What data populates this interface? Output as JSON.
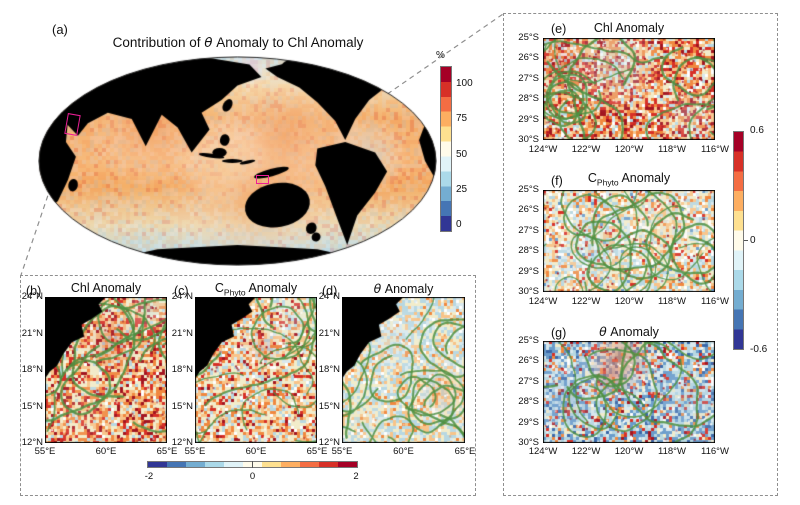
{
  "panel_a": {
    "label": "(a)",
    "title_pre": "Contribution of ",
    "title_theta": "θ",
    "title_post": " Anomaly to Chl Anomaly",
    "colorbar": {
      "unit_label": "%",
      "tick_labels": [
        "100",
        "75",
        "50",
        "25",
        "0"
      ]
    }
  },
  "bottom_group": {
    "panel_b": {
      "label": "(b)",
      "title": "Chl Anomaly"
    },
    "panel_c": {
      "label": "(c)",
      "title_c": "C",
      "title_sub": "Phyto",
      "title_rest": " Anomaly"
    },
    "panel_d": {
      "label": "(d)",
      "title_theta": "θ",
      "title_rest": " Anomaly"
    },
    "yticks": [
      "24°N",
      "21°N",
      "18°N",
      "15°N",
      "12°N"
    ],
    "xticks": [
      "55°E",
      "60°E",
      "65°E"
    ],
    "colorbar": {
      "tick_labels": [
        "-2",
        "0",
        "2"
      ]
    }
  },
  "right_group": {
    "panel_e": {
      "label": "(e)",
      "title": "Chl Anomaly"
    },
    "panel_f": {
      "label": "(f)",
      "title_c": "C",
      "title_sub": "Phyto",
      "title_rest": " Anomaly"
    },
    "panel_g": {
      "label": "(g)",
      "title_theta": "θ",
      "title_rest": " Anomaly"
    },
    "yticks": [
      "25°S",
      "26°S",
      "27°S",
      "28°S",
      "29°S",
      "30°S"
    ],
    "xticks": [
      "124°W",
      "122°W",
      "120°W",
      "118°W",
      "116°W"
    ],
    "colorbar": {
      "tick_labels": [
        "0.6",
        "0",
        "-0.6"
      ]
    }
  },
  "colors": {
    "colormap_neg_to_pos": [
      "#313695",
      "#4575b4",
      "#74add1",
      "#abd9e9",
      "#e0f3f8",
      "#fffbea",
      "#fee090",
      "#fdae61",
      "#f46d43",
      "#d73027",
      "#a50026"
    ],
    "contour_green": "#4e9142",
    "roi_box_magenta": "#ec1e96",
    "land_black": "#000000",
    "dashed_border_gray": "#8f8f8f"
  }
}
